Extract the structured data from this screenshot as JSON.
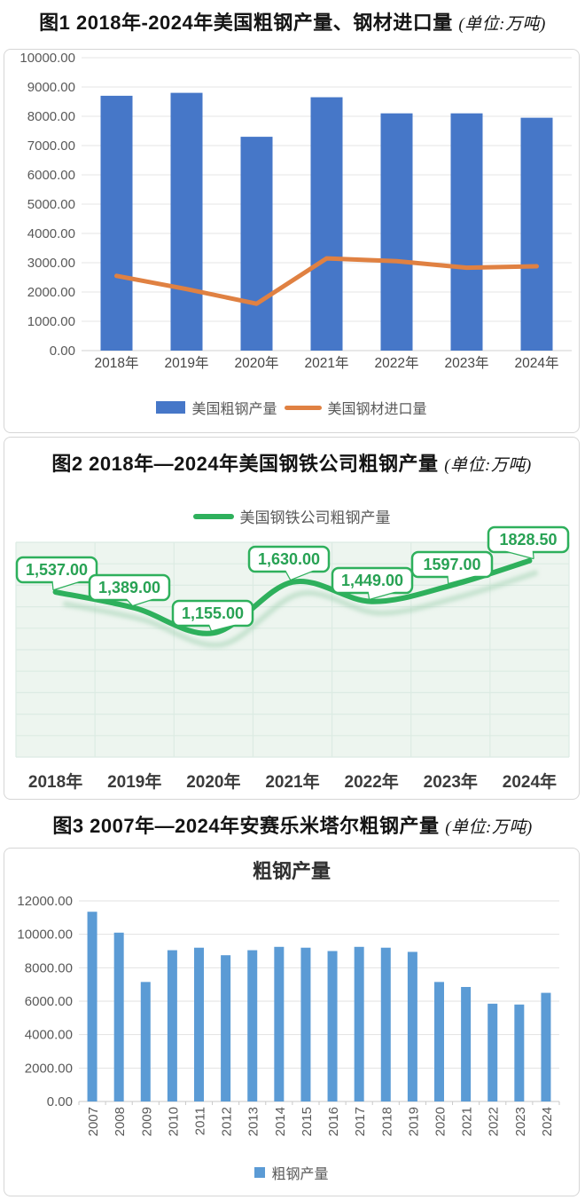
{
  "unit_note": "(单位:万吨)",
  "chart_data": [
    {
      "id": "figure1",
      "type": "bar",
      "figure_title": "图1 2018年-2024年美国粗钢产量、钢材进口量",
      "unit_label": "(单位:万吨)",
      "categories": [
        "2018年",
        "2019年",
        "2020年",
        "2021年",
        "2022年",
        "2023年",
        "2024年"
      ],
      "series": [
        {
          "name": "美国粗钢产量",
          "type": "bar",
          "color": "#4677c8",
          "values": [
            8700,
            8800,
            7300,
            8650,
            8100,
            8100,
            7950
          ]
        },
        {
          "name": "美国钢材进口量",
          "type": "line",
          "color": "#e08142",
          "values": [
            2550,
            2100,
            1600,
            3150,
            3050,
            2830,
            2880
          ]
        }
      ],
      "ylim": [
        0,
        10000
      ],
      "ytick_step": 1000,
      "ytick_labels": [
        "0.00",
        "1000.00",
        "2000.00",
        "3000.00",
        "4000.00",
        "5000.00",
        "6000.00",
        "7000.00",
        "8000.00",
        "9000.00",
        "10000.00"
      ],
      "grid": true,
      "legend_position": "bottom"
    },
    {
      "id": "figure2",
      "type": "line",
      "figure_title": "图2  2018年—2024年美国钢铁公司粗钢产量",
      "unit_label": "(单位:万吨)",
      "categories": [
        "2018年",
        "2019年",
        "2020年",
        "2021年",
        "2022年",
        "2023年",
        "2024年"
      ],
      "series": [
        {
          "name": "美国钢铁公司粗钢产量",
          "type": "line",
          "color": "#2eb05c",
          "values": [
            1537,
            1389,
            1155,
            1630,
            1449,
            1597,
            1828.5
          ]
        }
      ],
      "data_labels": [
        "1,537.00",
        "1,389.00",
        "1,155.00",
        "1,630.00",
        "1,449.00",
        "1597.00",
        "1828.50"
      ],
      "ylim": [
        0,
        2000
      ],
      "ytick_step": 200,
      "ytick_labels": [],
      "grid": true,
      "legend_position": "top",
      "plot_bg": "#edf5ef",
      "grid_color": "#dcebe3",
      "label_color": "#28a254"
    },
    {
      "id": "figure3",
      "type": "bar",
      "figure_title": "图3 2007年—2024年安赛乐米塔尔粗钢产量",
      "unit_label": "(单位:万吨)",
      "chart_title": "粗钢产量",
      "categories": [
        "2007",
        "2008",
        "2009",
        "2010",
        "2011",
        "2012",
        "2013",
        "2014",
        "2015",
        "2016",
        "2017",
        "2018",
        "2019",
        "2020",
        "2021",
        "2022",
        "2023",
        "2024"
      ],
      "series": [
        {
          "name": "粗钢产量",
          "type": "bar",
          "color": "#5b9bd5",
          "values": [
            11350,
            10100,
            7150,
            9050,
            9200,
            8750,
            9050,
            9250,
            9200,
            9000,
            9250,
            9200,
            8950,
            7150,
            6850,
            5850,
            5800,
            6500
          ]
        }
      ],
      "ylim": [
        0,
        12000
      ],
      "ytick_step": 2000,
      "ytick_labels": [
        "0.00",
        "2000.00",
        "4000.00",
        "6000.00",
        "8000.00",
        "10000.00",
        "12000.00"
      ],
      "grid": true,
      "legend_position": "bottom"
    }
  ]
}
